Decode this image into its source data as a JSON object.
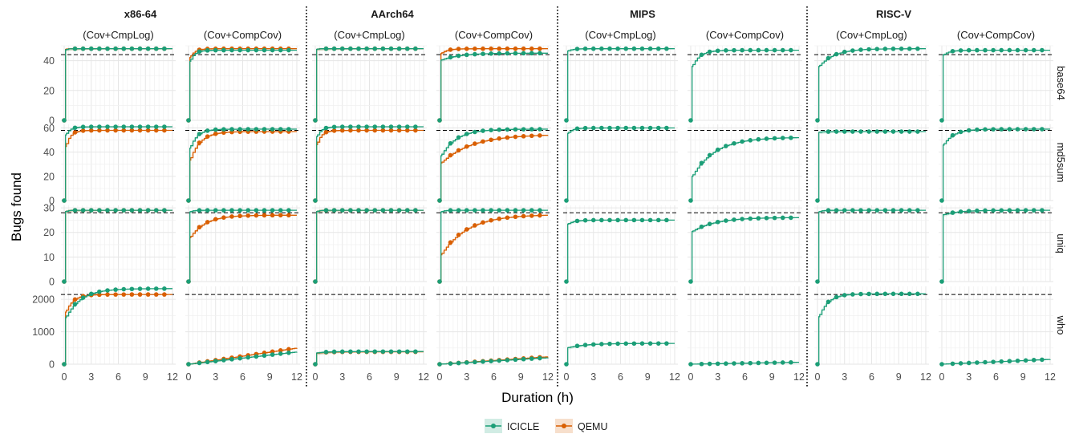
{
  "chart_data": {
    "type": "line",
    "ylabel": "Bugs found",
    "xlabel": "Duration (h)",
    "x_ticks": [
      0,
      3,
      6,
      9,
      12
    ],
    "xlim": [
      0,
      12
    ],
    "grid": true,
    "legend_position": "bottom",
    "architectures": [
      "x86-64",
      "AArch64",
      "MIPS",
      "RISC-V"
    ],
    "configs": [
      "(Cov+CmpLog)",
      "(Cov+CompCov)"
    ],
    "programs": [
      "base64",
      "md5sum",
      "uniq",
      "who"
    ],
    "y_ticks": {
      "base64": [
        0,
        20,
        40
      ],
      "md5sum": [
        0,
        20,
        40,
        60
      ],
      "uniq": [
        0,
        10,
        20,
        30
      ],
      "who": [
        0,
        1000,
        2000
      ]
    },
    "ylim": {
      "base64": [
        0,
        50
      ],
      "md5sum": [
        0,
        63
      ],
      "uniq": [
        0,
        31
      ],
      "who": [
        0,
        2400
      ]
    },
    "reference_lines": {
      "base64": 44,
      "md5sum": 58,
      "uniq": 28,
      "who": 2150
    },
    "legend": [
      {
        "name": "ICICLE",
        "color": "#1b9e77"
      },
      {
        "name": "QEMU",
        "color": "#d95f02"
      }
    ],
    "series_colors": {
      "ICICLE": "#1b9e77",
      "QEMU": "#d95f02"
    },
    "panels": {
      "base64": [
        {
          "ICICLE": {
            "final": 48,
            "jump": 46,
            "rate": 6
          },
          "QEMU": {
            "final": 48,
            "jump": 47,
            "rate": 6
          }
        },
        {
          "ICICLE": {
            "final": 47,
            "jump": 37,
            "rate": 2
          },
          "QEMU": {
            "final": 48,
            "jump": 40,
            "rate": 2
          }
        },
        {
          "ICICLE": {
            "final": 48,
            "jump": 47,
            "rate": 6
          },
          "QEMU": {
            "final": 48,
            "jump": 47,
            "rate": 6
          }
        },
        {
          "ICICLE": {
            "final": 45,
            "jump": 40,
            "rate": 0.5
          },
          "QEMU": {
            "final": 48,
            "jump": 44,
            "rate": 1.5
          }
        },
        {
          "ICICLE": {
            "final": 48,
            "jump": 46,
            "rate": 2
          }
        },
        {
          "ICICLE": {
            "final": 47,
            "jump": 34,
            "rate": 1.2
          }
        },
        {
          "ICICLE": {
            "final": 48,
            "jump": 35,
            "rate": 0.6
          }
        },
        {
          "ICICLE": {
            "final": 47,
            "jump": 43,
            "rate": 1.5
          }
        }
      ],
      "md5sum": [
        {
          "ICICLE": {
            "final": 61,
            "jump": 52,
            "rate": 2
          },
          "QEMU": {
            "final": 58,
            "jump": 40,
            "rate": 2
          }
        },
        {
          "ICICLE": {
            "final": 59,
            "jump": 40,
            "rate": 1.3
          },
          "QEMU": {
            "final": 57,
            "jump": 30,
            "rate": 0.9
          }
        },
        {
          "ICICLE": {
            "final": 61,
            "jump": 50,
            "rate": 2
          },
          "QEMU": {
            "final": 58,
            "jump": 42,
            "rate": 2
          }
        },
        {
          "ICICLE": {
            "final": 59,
            "jump": 35,
            "rate": 0.6
          },
          "QEMU": {
            "final": 54,
            "jump": 30,
            "rate": 0.3
          }
        },
        {
          "ICICLE": {
            "final": 60,
            "jump": 54,
            "rate": 2
          }
        },
        {
          "ICICLE": {
            "final": 52,
            "jump": 18,
            "rate": 0.4
          }
        },
        {
          "ICICLE": {
            "final": 57,
            "jump": 56,
            "rate": 3
          }
        },
        {
          "ICICLE": {
            "final": 59,
            "jump": 44,
            "rate": 0.9
          }
        }
      ],
      "uniq": [
        {
          "ICICLE": {
            "final": 29,
            "jump": 28,
            "rate": 4
          },
          "QEMU": {
            "final": 29,
            "jump": 28,
            "rate": 4
          }
        },
        {
          "ICICLE": {
            "final": 29,
            "jump": 28,
            "rate": 3
          },
          "QEMU": {
            "final": 27,
            "jump": 17,
            "rate": 0.6
          }
        },
        {
          "ICICLE": {
            "final": 29,
            "jump": 28,
            "rate": 4
          },
          "QEMU": {
            "final": 29,
            "jump": 28,
            "rate": 4
          }
        },
        {
          "ICICLE": {
            "final": 29,
            "jump": 28,
            "rate": 3
          },
          "QEMU": {
            "final": 27,
            "jump": 10,
            "rate": 0.35
          }
        },
        {
          "ICICLE": {
            "final": 25,
            "jump": 23,
            "rate": 1.5
          }
        },
        {
          "ICICLE": {
            "final": 26,
            "jump": 20,
            "rate": 0.4
          }
        },
        {
          "ICICLE": {
            "final": 29,
            "jump": 28,
            "rate": 3
          }
        },
        {
          "ICICLE": {
            "final": 29,
            "jump": 27,
            "rate": 0.6
          }
        }
      ],
      "who": [
        {
          "ICICLE": {
            "final": 2330,
            "jump": 1350,
            "rate": 0.6
          },
          "QEMU": {
            "final": 2150,
            "jump": 1500,
            "rate": 1.2
          }
        },
        {
          "ICICLE": {
            "final": 380,
            "jump": 0,
            "rate": 0.1,
            "linear": true
          },
          "QEMU": {
            "final": 500,
            "jump": 0,
            "rate": 0.1,
            "linear": true
          }
        },
        {
          "ICICLE": {
            "final": 390,
            "jump": 340,
            "rate": 1
          },
          "QEMU": {
            "final": 380,
            "jump": 330,
            "rate": 1
          }
        },
        {
          "ICICLE": {
            "final": 200,
            "jump": 0,
            "rate": 0.1,
            "linear": true
          },
          "QEMU": {
            "final": 230,
            "jump": 0,
            "rate": 0.1,
            "linear": true
          }
        },
        {
          "ICICLE": {
            "final": 640,
            "jump": 500,
            "rate": 0.5
          }
        },
        {
          "ICICLE": {
            "final": 60,
            "jump": 0,
            "rate": 0.1,
            "linear": true
          }
        },
        {
          "ICICLE": {
            "final": 2170,
            "jump": 1350,
            "rate": 1
          }
        },
        {
          "ICICLE": {
            "final": 150,
            "jump": 0,
            "rate": 0.1,
            "linear": true
          }
        }
      ]
    }
  }
}
